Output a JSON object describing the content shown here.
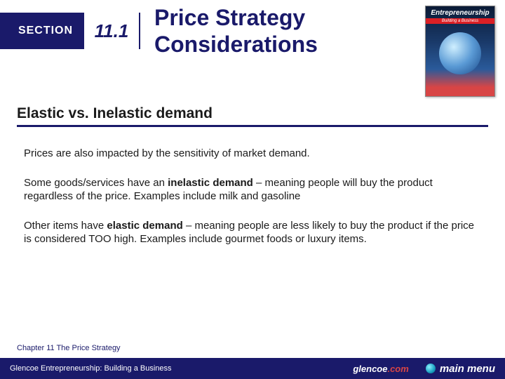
{
  "header": {
    "section_label": "SECTION",
    "section_number": "11.1",
    "title_line1": "Price Strategy",
    "title_line2": "Considerations",
    "colors": {
      "brand_navy": "#1a1a6a",
      "white": "#ffffff",
      "accent_red": "#d84545"
    },
    "book": {
      "title": "Entrepreneurship",
      "subtitle": "Building a Business"
    }
  },
  "content": {
    "heading": "Elastic vs. Inelastic demand",
    "paragraphs": [
      {
        "text": "Prices are also impacted by the sensitivity of market demand."
      },
      {
        "prefix": "Some goods/services have an ",
        "bold": "inelastic demand",
        "suffix": " – meaning people will buy the product regardless of the price.  Examples include milk and gasoline"
      },
      {
        "prefix": "Other items have ",
        "bold": "elastic demand",
        "suffix": " – meaning people are less likely to buy the product if the price is considered TOO high.  Examples include gourmet foods or luxury items."
      }
    ]
  },
  "footer": {
    "chapter": "Chapter 11   The Price Strategy",
    "source": "Glencoe Entrepreneurship: Building a Business",
    "brand_prefix": "glencoe",
    "brand_suffix": ".com",
    "menu_label": "main menu"
  }
}
